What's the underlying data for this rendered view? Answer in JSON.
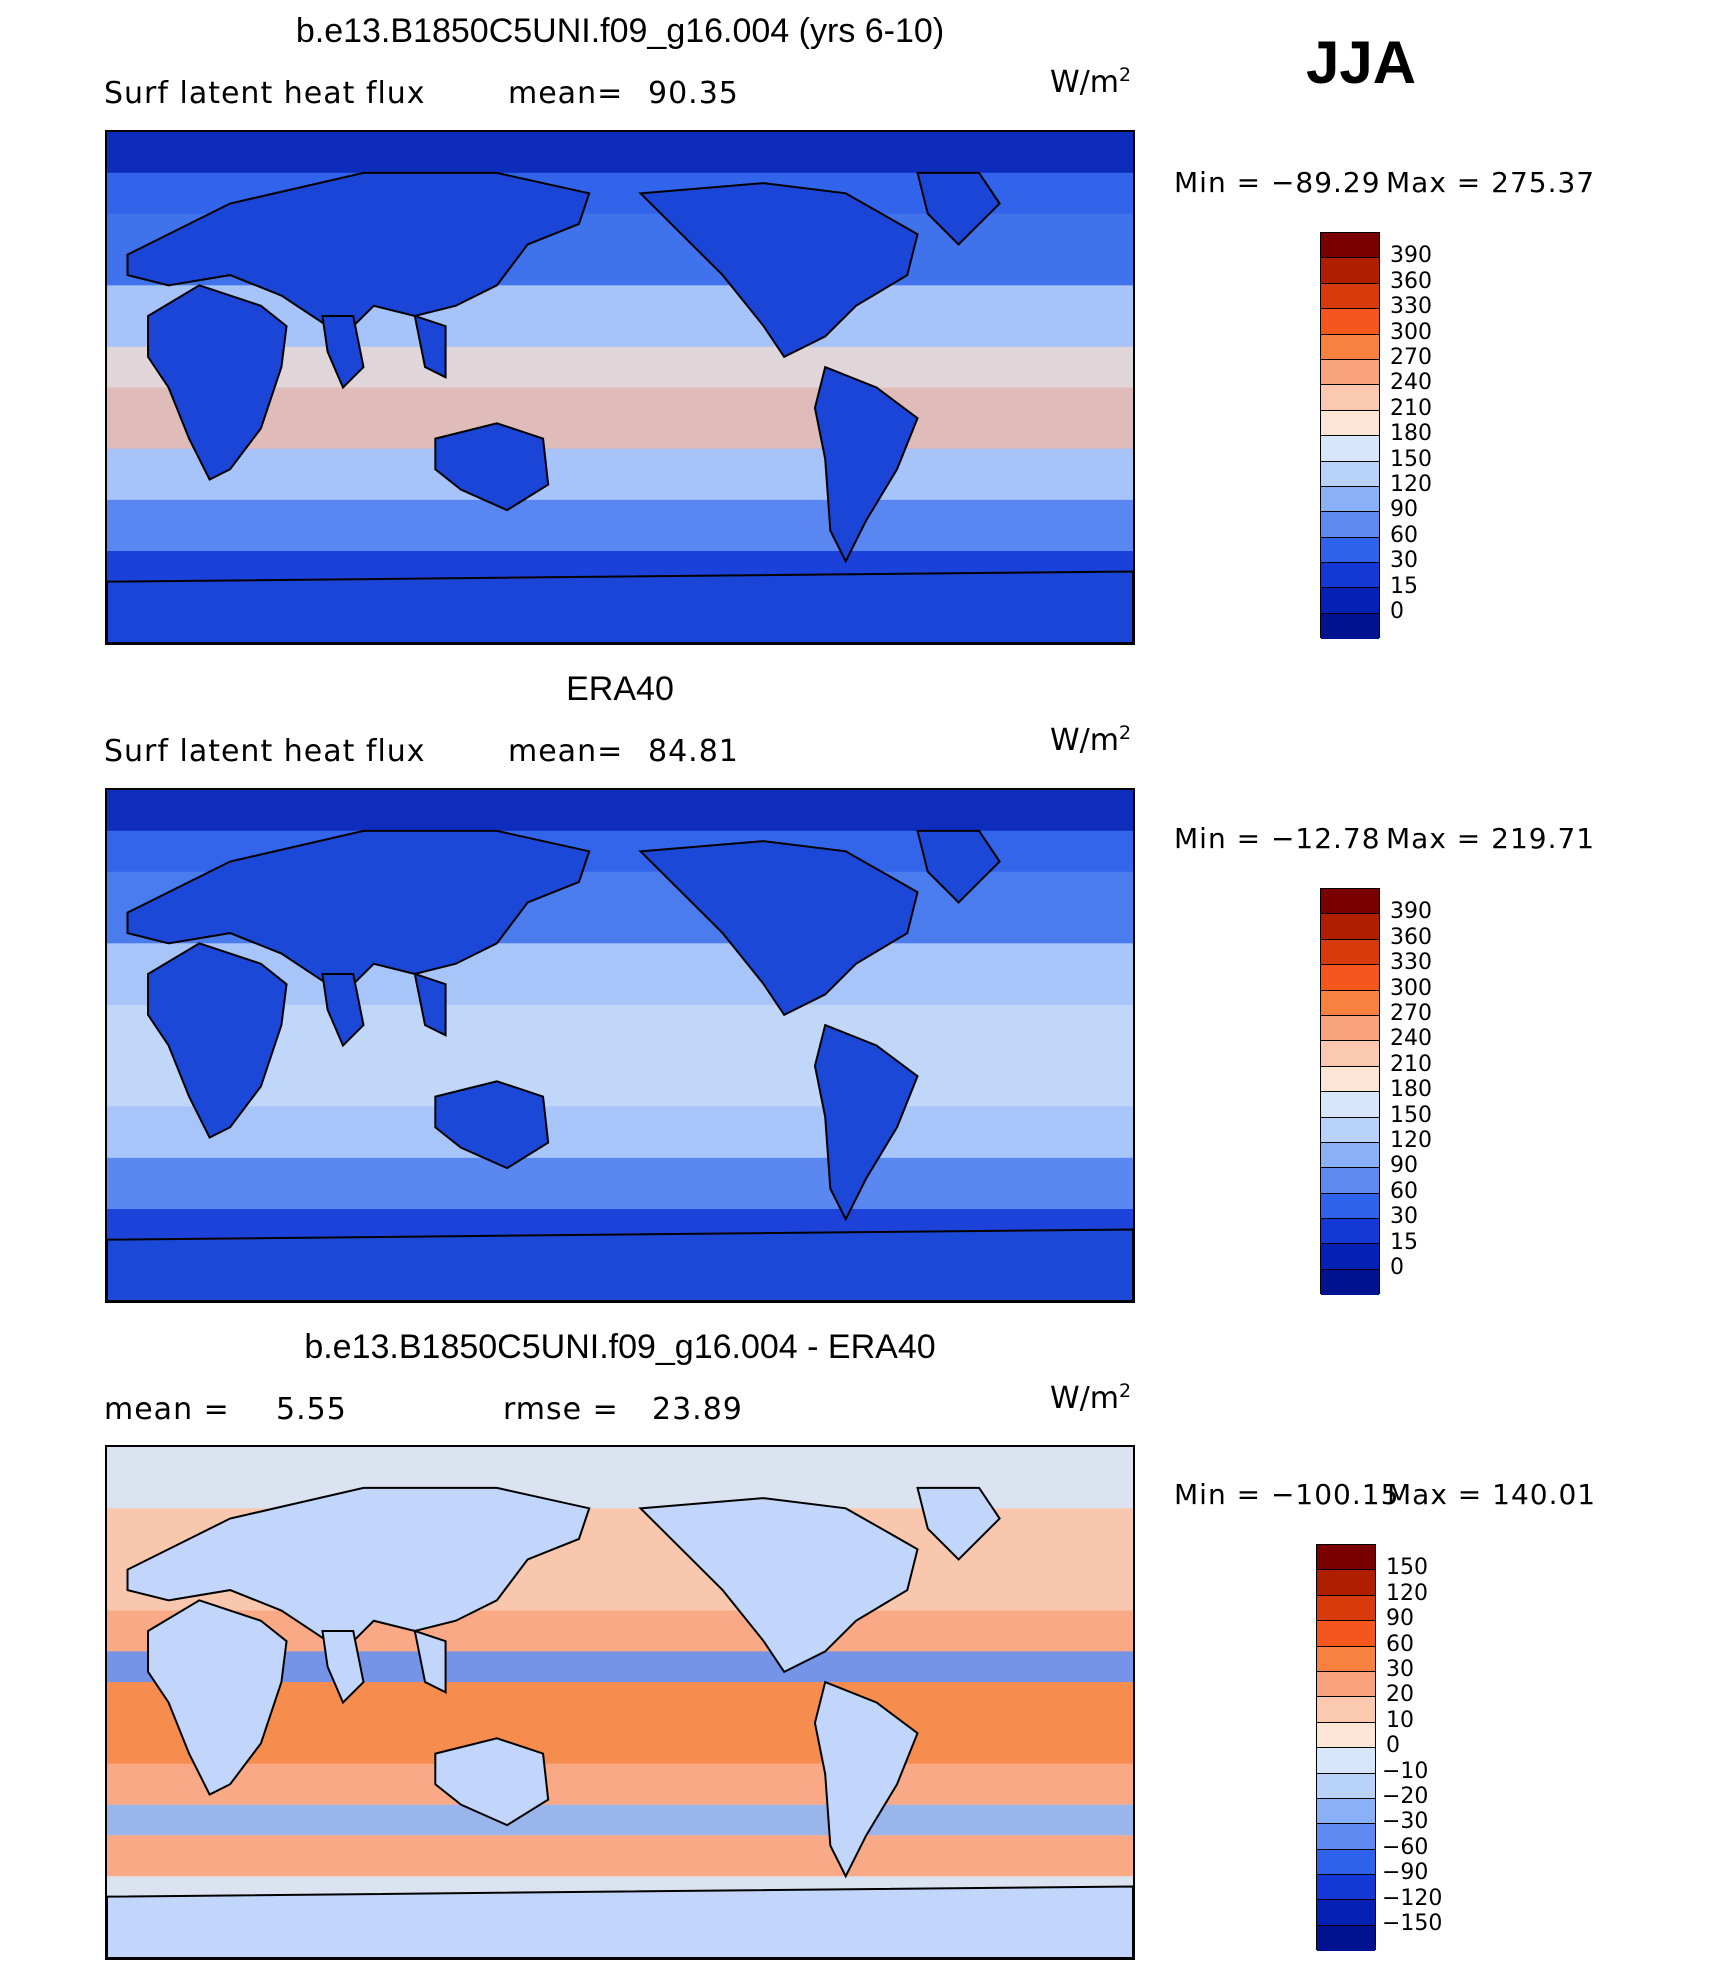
{
  "season": "JJA",
  "panels": [
    {
      "title": "b.e13.B1850C5UNI.f09_g16.004 (yrs 6-10)",
      "left_label": "Surf  latent  heat  flux",
      "stat_label": "mean=",
      "stat_value": "90.35",
      "stat2_label": "",
      "stat2_value": "",
      "units": "W/m",
      "units_sup": "2",
      "min_label": "Min  =  −89.29",
      "max_label": "Max  =  275.37",
      "levels": [
        "390",
        "360",
        "330",
        "300",
        "270",
        "240",
        "210",
        "180",
        "150",
        "120",
        "90",
        "60",
        "30",
        "15",
        "0"
      ],
      "colors": [
        "#7a0000",
        "#b01e00",
        "#d83a0c",
        "#f5561e",
        "#f7813e",
        "#f9a37e",
        "#fbc8b0",
        "#fde6d6",
        "#d6e7fb",
        "#b8d2fb",
        "#8ab1f7",
        "#5e8af1",
        "#2f62ea",
        "#1438d6",
        "#0520b4",
        "#001290"
      ],
      "sea_color": "#3f72eb",
      "land_color": "#1a45d6"
    },
    {
      "title": "ERA40",
      "left_label": "Surf  latent  heat  flux",
      "stat_label": "mean=",
      "stat_value": "84.81",
      "stat2_label": "",
      "stat2_value": "",
      "units": "W/m",
      "units_sup": "2",
      "min_label": "Min  =  −12.78",
      "max_label": "Max  =  219.71",
      "levels": [
        "390",
        "360",
        "330",
        "300",
        "270",
        "240",
        "210",
        "180",
        "150",
        "120",
        "90",
        "60",
        "30",
        "15",
        "0"
      ],
      "colors": [
        "#7a0000",
        "#b01e00",
        "#d83a0c",
        "#f5561e",
        "#f7813e",
        "#f9a37e",
        "#fbc8b0",
        "#fde6d6",
        "#d6e7fb",
        "#b8d2fb",
        "#8ab1f7",
        "#5e8af1",
        "#2f62ea",
        "#1438d6",
        "#0520b4",
        "#001290"
      ],
      "sea_color": "#4a7cee",
      "land_color": "#1c48d8"
    },
    {
      "title": "b.e13.B1850C5UNI.f09_g16.004 - ERA40",
      "left_label": "mean  =",
      "stat_label": "",
      "stat_value": "5.55",
      "stat2_label": "rmse  =",
      "stat2_value": "23.89",
      "units": "W/m",
      "units_sup": "2",
      "min_label": "Min  =  −100.15",
      "max_label": "Max  =  140.01",
      "levels": [
        "150",
        "120",
        "90",
        "60",
        "30",
        "20",
        "10",
        "0",
        "−10",
        "−20",
        "−30",
        "−60",
        "−90",
        "−120",
        "−150"
      ],
      "colors": [
        "#7a0000",
        "#b01e00",
        "#d83a0c",
        "#f5561e",
        "#f7813e",
        "#f9a37e",
        "#fbc8b0",
        "#fde6d6",
        "#d6e7fb",
        "#b8d2fb",
        "#8ab1f7",
        "#5e8af1",
        "#2f62ea",
        "#1438d6",
        "#0520b4",
        "#001290"
      ],
      "sea_color": "#f9c7ad",
      "land_color": "#c2d6fb"
    }
  ]
}
